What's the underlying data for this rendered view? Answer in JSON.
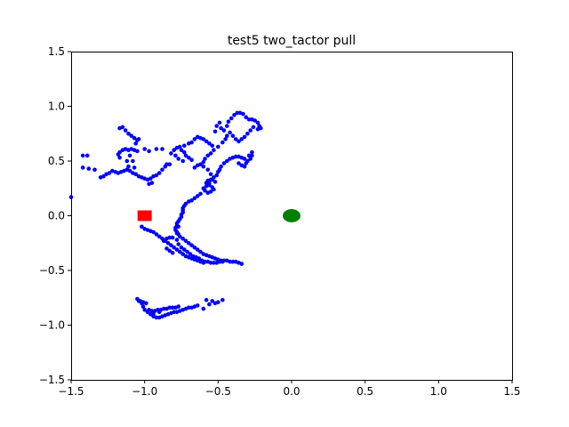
{
  "chart_data": {
    "type": "scatter",
    "title": "test5 two_tactor pull",
    "xlabel": "",
    "ylabel": "",
    "xlim": [
      -1.5,
      1.5
    ],
    "ylim": [
      -1.5,
      1.5
    ],
    "xticks": [
      -1.5,
      -1.0,
      -0.5,
      0.0,
      0.5,
      1.0,
      1.5
    ],
    "yticks": [
      -1.5,
      -1.0,
      -0.5,
      0.0,
      0.5,
      1.0,
      1.5
    ],
    "xtick_labels": [
      "−1.5",
      "−1.0",
      "−0.5",
      "0.0",
      "0.5",
      "1.0",
      "1.5"
    ],
    "ytick_labels": [
      "−1.5",
      "−1.0",
      "−0.5",
      "0.0",
      "0.5",
      "1.0",
      "1.5"
    ],
    "grid": false,
    "colors": {
      "trajectory": "#0000ff",
      "start_marker": "#ff0000",
      "target_marker": "#008000"
    },
    "series": [
      {
        "marker": "circle",
        "color": "#0000ff",
        "points": [
          [
            -1.5,
            0.17
          ],
          [
            -1.42,
            0.55
          ],
          [
            -1.39,
            0.55
          ],
          [
            -1.42,
            0.44
          ],
          [
            -1.38,
            0.43
          ],
          [
            -1.34,
            0.42
          ],
          [
            -1.3,
            0.35
          ],
          [
            -1.28,
            0.36
          ],
          [
            -1.26,
            0.38
          ],
          [
            -1.24,
            0.39
          ],
          [
            -1.22,
            0.41
          ],
          [
            -1.2,
            0.4
          ],
          [
            -1.18,
            0.39
          ],
          [
            -1.16,
            0.4
          ],
          [
            -1.14,
            0.41
          ],
          [
            -1.12,
            0.42
          ],
          [
            -1.1,
            0.41
          ],
          [
            -1.08,
            0.39
          ],
          [
            -1.06,
            0.38
          ],
          [
            -1.04,
            0.36
          ],
          [
            -1.02,
            0.35
          ],
          [
            -1.0,
            0.34
          ],
          [
            -0.98,
            0.33
          ],
          [
            -0.96,
            0.34
          ],
          [
            -0.94,
            0.36
          ],
          [
            -0.92,
            0.37
          ],
          [
            -0.9,
            0.39
          ],
          [
            -0.88,
            0.42
          ],
          [
            -0.86,
            0.45
          ],
          [
            -0.85,
            0.47
          ],
          [
            -0.83,
            0.47
          ],
          [
            -0.97,
            0.29
          ],
          [
            -0.95,
            0.3
          ],
          [
            -1.17,
            0.53
          ],
          [
            -1.18,
            0.56
          ],
          [
            -1.17,
            0.58
          ],
          [
            -1.15,
            0.6
          ],
          [
            -1.13,
            0.61
          ],
          [
            -1.11,
            0.6
          ],
          [
            -1.09,
            0.61
          ],
          [
            -1.07,
            0.6
          ],
          [
            -1.05,
            0.59
          ],
          [
            -1.1,
            0.55
          ],
          [
            -1.12,
            0.5
          ],
          [
            -1.08,
            0.5
          ],
          [
            -1.11,
            0.45
          ],
          [
            -1.07,
            0.44
          ],
          [
            -1.17,
            0.8
          ],
          [
            -1.15,
            0.81
          ],
          [
            -1.13,
            0.78
          ],
          [
            -1.11,
            0.75
          ],
          [
            -1.09,
            0.73
          ],
          [
            -1.07,
            0.71
          ],
          [
            -1.05,
            0.69
          ],
          [
            -1.04,
            0.7
          ],
          [
            -1.06,
            0.66
          ],
          [
            -1.0,
            0.61
          ],
          [
            -0.97,
            0.59
          ],
          [
            -0.92,
            0.61
          ],
          [
            -0.88,
            0.61
          ],
          [
            -0.8,
            0.6
          ],
          [
            -0.78,
            0.62
          ],
          [
            -0.76,
            0.63
          ],
          [
            -0.73,
            0.64
          ],
          [
            -0.7,
            0.66
          ],
          [
            -0.68,
            0.67
          ],
          [
            -0.66,
            0.7
          ],
          [
            -0.64,
            0.72
          ],
          [
            -0.62,
            0.71
          ],
          [
            -0.6,
            0.7
          ],
          [
            -0.58,
            0.68
          ],
          [
            -0.56,
            0.66
          ],
          [
            -0.54,
            0.64
          ],
          [
            -0.72,
            0.55
          ],
          [
            -0.7,
            0.53
          ],
          [
            -0.68,
            0.51
          ],
          [
            -0.74,
            0.5
          ],
          [
            -0.77,
            0.52
          ],
          [
            -0.79,
            0.55
          ],
          [
            -0.82,
            0.57
          ],
          [
            -0.75,
            0.6
          ],
          [
            -0.73,
            0.58
          ],
          [
            -0.52,
            0.77
          ],
          [
            -0.51,
            0.82
          ],
          [
            -0.49,
            0.85
          ],
          [
            -0.48,
            0.8
          ],
          [
            -0.46,
            0.78
          ],
          [
            -0.44,
            0.82
          ],
          [
            -0.43,
            0.86
          ],
          [
            -0.41,
            0.89
          ],
          [
            -0.39,
            0.92
          ],
          [
            -0.37,
            0.94
          ],
          [
            -0.35,
            0.94
          ],
          [
            -0.33,
            0.93
          ],
          [
            -0.31,
            0.9
          ],
          [
            -0.29,
            0.88
          ],
          [
            -0.27,
            0.88
          ],
          [
            -0.25,
            0.87
          ],
          [
            -0.23,
            0.85
          ],
          [
            -0.22,
            0.82
          ],
          [
            -0.21,
            0.8
          ],
          [
            -0.23,
            0.79
          ],
          [
            -0.26,
            0.81
          ],
          [
            -0.28,
            0.78
          ],
          [
            -0.3,
            0.75
          ],
          [
            -0.32,
            0.72
          ],
          [
            -0.34,
            0.7
          ],
          [
            -0.36,
            0.68
          ],
          [
            -0.38,
            0.7
          ],
          [
            -0.4,
            0.73
          ],
          [
            -0.42,
            0.76
          ],
          [
            -0.44,
            0.73
          ],
          [
            -0.45,
            0.7
          ],
          [
            -0.47,
            0.67
          ],
          [
            -0.5,
            0.63
          ],
          [
            -0.53,
            0.6
          ],
          [
            -0.55,
            0.57
          ],
          [
            -0.57,
            0.55
          ],
          [
            -0.59,
            0.52
          ],
          [
            -0.6,
            0.49
          ],
          [
            -0.42,
            0.52
          ],
          [
            -0.4,
            0.53
          ],
          [
            -0.38,
            0.54
          ],
          [
            -0.36,
            0.54
          ],
          [
            -0.34,
            0.53
          ],
          [
            -0.32,
            0.52
          ],
          [
            -0.3,
            0.5
          ],
          [
            -0.28,
            0.52
          ],
          [
            -0.27,
            0.55
          ],
          [
            -0.27,
            0.58
          ],
          [
            -0.29,
            0.55
          ],
          [
            -0.31,
            0.48
          ],
          [
            -0.32,
            0.45
          ],
          [
            -0.34,
            0.46
          ],
          [
            -0.36,
            0.48
          ],
          [
            -0.44,
            0.5
          ],
          [
            -0.46,
            0.48
          ],
          [
            -0.48,
            0.45
          ],
          [
            -0.49,
            0.42
          ],
          [
            -0.5,
            0.4
          ],
          [
            -0.51,
            0.37
          ],
          [
            -0.53,
            0.35
          ],
          [
            -0.55,
            0.33
          ],
          [
            -0.57,
            0.32
          ],
          [
            -0.58,
            0.3
          ],
          [
            -0.56,
            0.28
          ],
          [
            -0.54,
            0.26
          ],
          [
            -0.53,
            0.24
          ],
          [
            -0.55,
            0.22
          ],
          [
            -0.57,
            0.21
          ],
          [
            -0.59,
            0.23
          ],
          [
            -0.6,
            0.25
          ],
          [
            -0.58,
            0.27
          ],
          [
            -0.56,
            0.3
          ],
          [
            -0.54,
            0.33
          ],
          [
            -0.52,
            0.31
          ],
          [
            -0.55,
            0.38
          ],
          [
            -0.57,
            0.42
          ],
          [
            -0.6,
            0.45
          ],
          [
            -0.62,
            0.47
          ],
          [
            -0.64,
            0.46
          ],
          [
            -0.66,
            0.44
          ],
          [
            -0.62,
            0.2
          ],
          [
            -0.64,
            0.18
          ],
          [
            -0.66,
            0.16
          ],
          [
            -0.68,
            0.14
          ],
          [
            -0.7,
            0.13
          ],
          [
            -0.72,
            0.11
          ],
          [
            -0.73,
            0.09
          ],
          [
            -0.74,
            0.07
          ],
          [
            -0.74,
            0.05
          ],
          [
            -0.74,
            0.03
          ],
          [
            -0.75,
            0.01
          ],
          [
            -0.75,
            -0.01
          ],
          [
            -0.76,
            -0.03
          ],
          [
            -0.77,
            -0.05
          ],
          [
            -0.78,
            -0.07
          ],
          [
            -0.78,
            -0.09
          ],
          [
            -0.79,
            -0.11
          ],
          [
            -0.79,
            -0.13
          ],
          [
            -0.78,
            -0.15
          ],
          [
            -0.77,
            -0.17
          ],
          [
            -0.76,
            -0.19
          ],
          [
            -0.74,
            -0.21
          ],
          [
            -0.72,
            -0.23
          ],
          [
            -0.7,
            -0.25
          ],
          [
            -0.68,
            -0.27
          ],
          [
            -0.66,
            -0.29
          ],
          [
            -0.64,
            -0.31
          ],
          [
            -0.62,
            -0.33
          ],
          [
            -0.6,
            -0.35
          ],
          [
            -0.58,
            -0.36
          ],
          [
            -0.56,
            -0.37
          ],
          [
            -0.54,
            -0.38
          ],
          [
            -0.52,
            -0.39
          ],
          [
            -0.5,
            -0.4
          ],
          [
            -0.48,
            -0.41
          ],
          [
            -0.46,
            -0.41
          ],
          [
            -0.44,
            -0.41
          ],
          [
            -0.42,
            -0.42
          ],
          [
            -0.4,
            -0.42
          ],
          [
            -0.38,
            -0.42
          ],
          [
            -0.36,
            -0.43
          ],
          [
            -0.34,
            -0.44
          ],
          [
            -0.77,
            -0.1
          ],
          [
            -0.78,
            -0.16
          ],
          [
            -0.78,
            -0.22
          ],
          [
            -0.77,
            -0.26
          ],
          [
            -0.75,
            -0.29
          ],
          [
            -0.73,
            -0.31
          ],
          [
            -0.71,
            -0.33
          ],
          [
            -0.69,
            -0.35
          ],
          [
            -0.67,
            -0.37
          ],
          [
            -0.65,
            -0.38
          ],
          [
            -0.63,
            -0.39
          ],
          [
            -0.61,
            -0.41
          ],
          [
            -0.59,
            -0.42
          ],
          [
            -0.57,
            -0.42
          ],
          [
            -0.55,
            -0.43
          ],
          [
            -0.53,
            -0.43
          ],
          [
            -0.51,
            -0.43
          ],
          [
            -0.49,
            -0.42
          ],
          [
            -0.47,
            -0.42
          ],
          [
            -1.02,
            -0.1
          ],
          [
            -1.0,
            -0.12
          ],
          [
            -0.98,
            -0.13
          ],
          [
            -0.96,
            -0.14
          ],
          [
            -0.94,
            -0.15
          ],
          [
            -0.92,
            -0.17
          ],
          [
            -0.9,
            -0.19
          ],
          [
            -0.88,
            -0.21
          ],
          [
            -0.86,
            -0.23
          ],
          [
            -0.84,
            -0.25
          ],
          [
            -0.82,
            -0.27
          ],
          [
            -0.8,
            -0.29
          ],
          [
            -0.78,
            -0.31
          ],
          [
            -0.76,
            -0.33
          ],
          [
            -0.74,
            -0.35
          ],
          [
            -0.72,
            -0.37
          ],
          [
            -0.7,
            -0.38
          ],
          [
            -0.68,
            -0.39
          ],
          [
            -0.66,
            -0.4
          ],
          [
            -0.64,
            -0.41
          ],
          [
            -0.62,
            -0.42
          ],
          [
            -0.6,
            -0.43
          ],
          [
            -0.87,
            -0.23
          ],
          [
            -0.85,
            -0.21
          ],
          [
            -0.83,
            -0.2
          ],
          [
            -0.81,
            -0.2
          ],
          [
            -0.85,
            -0.3
          ],
          [
            -0.83,
            -0.32
          ],
          [
            -0.81,
            -0.34
          ],
          [
            -1.05,
            -0.76
          ],
          [
            -1.04,
            -0.78
          ],
          [
            -1.02,
            -0.8
          ],
          [
            -1.01,
            -0.83
          ],
          [
            -1.0,
            -0.86
          ],
          [
            -0.98,
            -0.88
          ],
          [
            -0.96,
            -0.9
          ],
          [
            -0.94,
            -0.92
          ],
          [
            -0.92,
            -0.93
          ],
          [
            -0.9,
            -0.93
          ],
          [
            -0.88,
            -0.92
          ],
          [
            -0.86,
            -0.91
          ],
          [
            -0.84,
            -0.9
          ],
          [
            -0.82,
            -0.89
          ],
          [
            -0.8,
            -0.88
          ],
          [
            -0.78,
            -0.88
          ],
          [
            -0.76,
            -0.87
          ],
          [
            -0.74,
            -0.86
          ],
          [
            -0.72,
            -0.85
          ],
          [
            -0.7,
            -0.84
          ],
          [
            -0.68,
            -0.84
          ],
          [
            -0.66,
            -0.83
          ],
          [
            -0.64,
            -0.82
          ],
          [
            -1.03,
            -0.78
          ],
          [
            -1.01,
            -0.79
          ],
          [
            -0.99,
            -0.8
          ],
          [
            -0.97,
            -0.86
          ],
          [
            -0.95,
            -0.87
          ],
          [
            -0.93,
            -0.87
          ],
          [
            -0.91,
            -0.86
          ],
          [
            -0.89,
            -0.86
          ],
          [
            -0.87,
            -0.85
          ],
          [
            -0.85,
            -0.85
          ],
          [
            -0.83,
            -0.84
          ],
          [
            -0.81,
            -0.84
          ],
          [
            -0.79,
            -0.84
          ],
          [
            -0.77,
            -0.83
          ],
          [
            -0.6,
            -0.85
          ],
          [
            -0.58,
            -0.77
          ],
          [
            -0.56,
            -0.81
          ],
          [
            -0.54,
            -0.78
          ],
          [
            -0.52,
            -0.8
          ],
          [
            -0.5,
            -0.79
          ],
          [
            -0.47,
            -0.77
          ],
          [
            -0.94,
            -0.9
          ],
          [
            -0.9,
            -0.88
          ]
        ]
      }
    ],
    "markers": [
      {
        "shape": "square",
        "color": "#ff0000",
        "x": -1.0,
        "y": 0.0
      },
      {
        "shape": "ellipse",
        "color": "#008000",
        "x": 0.0,
        "y": 0.0
      }
    ]
  }
}
